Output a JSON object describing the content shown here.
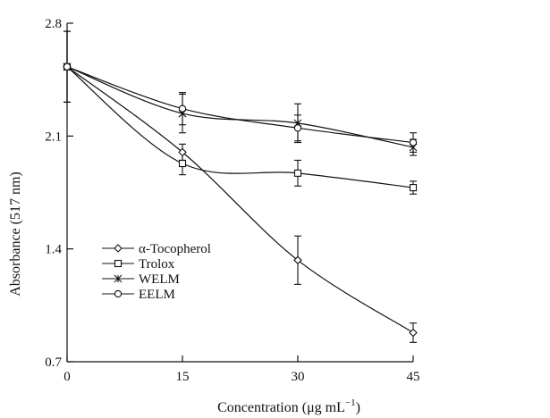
{
  "chart_data": {
    "type": "line",
    "xlabel": "Concentration (μg mL",
    "xlabel_sup": "−1",
    "xlabel_end": ")",
    "ylabel": "Absorbance (517 nm)",
    "x": [
      0,
      15,
      30,
      45
    ],
    "x_tick_labels": [
      "0",
      "15",
      "30",
      "45"
    ],
    "y_ticks": [
      0.7,
      1.4,
      2.1,
      2.8
    ],
    "y_tick_labels": [
      "0.7",
      "1.4",
      "2.1",
      "2.8"
    ],
    "xlim": [
      0,
      45
    ],
    "ylim": [
      0.7,
      2.8
    ],
    "grid": false,
    "legend_position": "lower-left",
    "series": [
      {
        "name": "α-Tocopherol",
        "marker": "diamond",
        "values": [
          2.53,
          2.0,
          1.33,
          0.88
        ],
        "errors": [
          0.22,
          0.05,
          0.15,
          0.06
        ]
      },
      {
        "name": "Trolox",
        "marker": "square",
        "values": [
          2.53,
          1.93,
          1.87,
          1.78
        ],
        "errors": [
          0.22,
          0.07,
          0.08,
          0.04
        ]
      },
      {
        "name": "WELM",
        "marker": "asterisk",
        "values": [
          2.53,
          2.24,
          2.18,
          2.03
        ],
        "errors": [
          0.22,
          0.12,
          0.12,
          0.05
        ]
      },
      {
        "name": "EELM",
        "marker": "circle",
        "values": [
          2.53,
          2.27,
          2.15,
          2.06
        ],
        "errors": [
          0.22,
          0.1,
          0.08,
          0.06
        ]
      }
    ]
  }
}
